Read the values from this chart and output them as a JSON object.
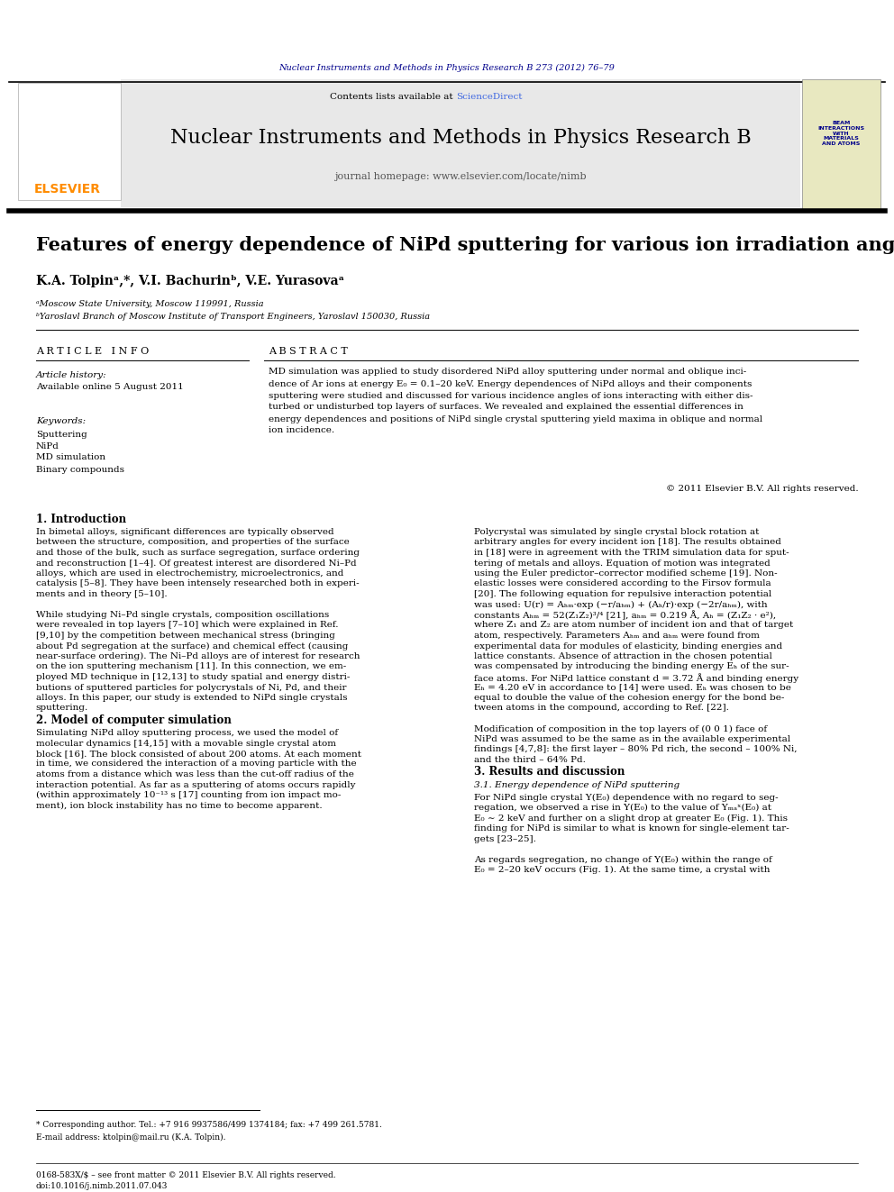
{
  "bg_color": "#ffffff",
  "page_width": 9.92,
  "page_height": 13.23,
  "journal_header_text": "Nuclear Instruments and Methods in Physics Research B 273 (2012) 76–79",
  "journal_header_color": "#00008B",
  "header_bg_color": "#e8e8e8",
  "journal_title": "Nuclear Instruments and Methods in Physics Research B",
  "journal_homepage": "journal homepage: www.elsevier.com/locate/nimb",
  "contents_text": "Contents lists available at",
  "sciencedirect_text": "ScienceDirect",
  "sciencedirect_color": "#4169E1",
  "elsevier_color": "#FF8C00",
  "article_title": "Features of energy dependence of NiPd sputtering for various ion irradiation angles",
  "authors": "K.A. Tolpinᵃ,*, V.I. Bachurinᵇ, V.E. Yurasovaᵃ",
  "affil_a": "ᵃMoscow State University, Moscow 119991, Russia",
  "affil_b": "ᵇYaroslavl Branch of Moscow Institute of Transport Engineers, Yaroslavl 150030, Russia",
  "article_info_label": "A R T I C L E   I N F O",
  "abstract_label": "A B S T R A C T",
  "article_history_label": "Article history:",
  "received_text": "Available online 5 August 2011",
  "keywords_label": "Keywords:",
  "kw1": "Sputtering",
  "kw2": "NiPd",
  "kw3": "MD simulation",
  "kw4": "Binary compounds",
  "copyright_text": "© 2011 Elsevier B.V. All rights reserved.",
  "section1_title": "1. Introduction",
  "section2_title": "2. Model of computer simulation",
  "section3_title": "3. Results and discussion",
  "section31_title": "3.1. Energy dependence of NiPd sputtering",
  "footnote_star": "* Corresponding author. Tel.: +7 916 9937586/499 1374184; fax: +7 499 261.5781.",
  "footnote_email": "E-mail address: ktolpin@mail.ru (K.A. Tolpin).",
  "footer_issn": "0168-583X/$ – see front matter © 2011 Elsevier B.V. All rights reserved.",
  "footer_doi": "doi:10.1016/j.nimb.2011.07.043",
  "abstract_lines": [
    "MD simulation was applied to study disordered NiPd alloy sputtering under normal and oblique inci-",
    "dence of Ar ions at energy E₀ = 0.1–20 keV. Energy dependences of NiPd alloys and their components",
    "sputtering were studied and discussed for various incidence angles of ions interacting with either dis-",
    "turbed or undisturbed top layers of surfaces. We revealed and explained the essential differences in",
    "energy dependences and positions of NiPd single crystal sputtering yield maxima in oblique and normal",
    "ion incidence."
  ],
  "s1_lines": [
    "In bimetal alloys, significant differences are typically observed",
    "between the structure, composition, and properties of the surface",
    "and those of the bulk, such as surface segregation, surface ordering",
    "and reconstruction [1–4]. Of greatest interest are disordered Ni–Pd",
    "alloys, which are used in electrochemistry, microelectronics, and",
    "catalysis [5–8]. They have been intensely researched both in experi-",
    "ments and in theory [5–10].",
    "",
    "While studying Ni–Pd single crystals, composition oscillations",
    "were revealed in top layers [7–10] which were explained in Ref.",
    "[9,10] by the competition between mechanical stress (bringing",
    "about Pd segregation at the surface) and chemical effect (causing",
    "near-surface ordering). The Ni–Pd alloys are of interest for research",
    "on the ion sputtering mechanism [11]. In this connection, we em-",
    "ployed MD technique in [12,13] to study spatial and energy distri-",
    "butions of sputtered particles for polycrystals of Ni, Pd, and their",
    "alloys. In this paper, our study is extended to NiPd single crystals",
    "sputtering."
  ],
  "s2_lines": [
    "Simulating NiPd alloy sputtering process, we used the model of",
    "molecular dynamics [14,15] with a movable single crystal atom",
    "block [16]. The block consisted of about 200 atoms. At each moment",
    "in time, we considered the interaction of a moving particle with the",
    "atoms from a distance which was less than the cut-off radius of the",
    "interaction potential. As far as a sputtering of atoms occurs rapidly",
    "(within approximately 10⁻¹³ s [17] counting from ion impact mo-",
    "ment), ion block instability has no time to become apparent."
  ],
  "rc_lines": [
    "Polycrystal was simulated by single crystal block rotation at",
    "arbitrary angles for every incident ion [18]. The results obtained",
    "in [18] were in agreement with the TRIM simulation data for sput-",
    "tering of metals and alloys. Equation of motion was integrated",
    "using the Euler predictor–corrector modified scheme [19]. Non-",
    "elastic losses were considered according to the Firsov formula",
    "[20]. The following equation for repulsive interaction potential",
    "was used: U(r) = Aₕₘ·exp (−r/aₕₘ) + (Aₕ/r)·exp (−2r/aₕₘ), with",
    "constants Aₕₘ = 52(Z₁Z₂)³/⁴ [21], aₕₘ = 0.219 Å, Aₕ = (Z₁Z₂ · e²),",
    "where Z₁ and Z₂ are atom number of incident ion and that of target",
    "atom, respectively. Parameters Aₕₘ and aₕₘ were found from",
    "experimental data for modules of elasticity, binding energies and",
    "lattice constants. Absence of attraction in the chosen potential",
    "was compensated by introducing the binding energy Eₕ of the sur-",
    "face atoms. For NiPd lattice constant d = 3.72 Å and binding energy",
    "Eₕ = 4.20 eV in accordance to [14] were used. Eₕ was chosen to be",
    "equal to double the value of the cohesion energy for the bond be-",
    "tween atoms in the compound, according to Ref. [22].",
    "",
    "Modification of composition in the top layers of (0 0 1) face of",
    "NiPd was assumed to be the same as in the available experimental",
    "findings [4,7,8]: the first layer – 80% Pd rich, the second – 100% Ni,",
    "and the third – 64% Pd."
  ],
  "s31_lines": [
    "For NiPd single crystal Y(E₀) dependence with no regard to seg-",
    "regation, we observed a rise in Y(E₀) to the value of Yₘₐˣ(E₀) at",
    "E₀ ∼ 2 keV and further on a slight drop at greater E₀ (Fig. 1). This",
    "finding for NiPd is similar to what is known for single-element tar-",
    "gets [23–25].",
    "",
    "As regards segregation, no change of Y(E₀) within the range of",
    "E₀ = 2–20 keV occurs (Fig. 1). At the same time, a crystal with"
  ]
}
